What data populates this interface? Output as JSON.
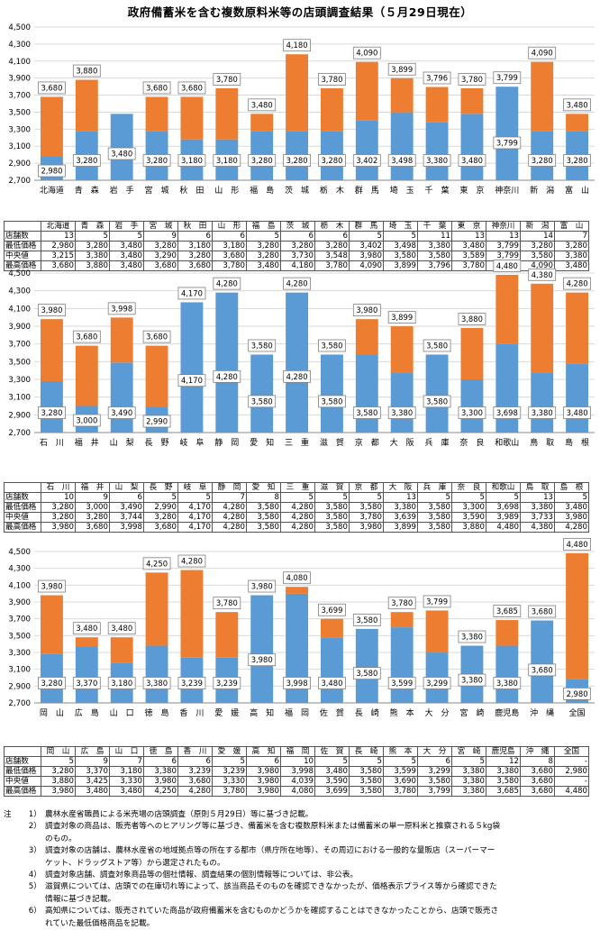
{
  "title": "政府備蓄米を含む複数原料米等の店頭調査結果（５月29日現在）",
  "colors": {
    "min_bar": "#5b9bd5",
    "range_bar": "#ed7d31",
    "grid": "#d9d9d9",
    "border": "#555555"
  },
  "row_labels": {
    "stores": "店舗数",
    "min": "最低価格",
    "median": "中央値",
    "max": "最高価格"
  },
  "chart_data": [
    {
      "type": "bar",
      "stacked": true,
      "ylim": [
        2700,
        4500
      ],
      "yticks": [
        "2,700",
        "2,900",
        "3,100",
        "3,300",
        "3,500",
        "3,700",
        "3,900",
        "4,100",
        "4,300",
        "4,500"
      ],
      "grid": true,
      "categories": [
        "北海道",
        "青森",
        "岩手",
        "宮城",
        "秋田",
        "山形",
        "福島",
        "茨城",
        "栃木",
        "群馬",
        "埼玉",
        "千葉",
        "東京",
        "神奈川",
        "新潟",
        "富山"
      ],
      "chart_labels": [
        "北海道",
        "青　森",
        "岩　手",
        "宮　城",
        "秋　田",
        "山　形",
        "福　島",
        "茨　城",
        "栃　木",
        "群　馬",
        "埼　玉",
        "千　葉",
        "東　京",
        "神奈川",
        "新　潟",
        "富　山"
      ],
      "table_labels": [
        "北海道",
        "青　森",
        "岩　手",
        "宮　城",
        "秋　田",
        "山　形",
        "福　島",
        "茨　城",
        "栃　木",
        "群　馬",
        "埼　玉",
        "千　葉",
        "東　京",
        "神奈川",
        "新　潟",
        "富　山"
      ],
      "min_labels": [
        "2,980",
        "3,280",
        "3,480",
        "3,280",
        "3,180",
        "3,180",
        "3,280",
        "3,280",
        "3,280",
        "3,402",
        "3,498",
        "3,380",
        "3,480",
        "3,799",
        "3,280",
        "3,280"
      ],
      "max_labels": [
        "3,680",
        "3,880",
        "",
        "3,680",
        "3,680",
        "3,780",
        "3,480",
        "4,180",
        "3,780",
        "4,090",
        "3,899",
        "3,796",
        "3,780",
        "3,799",
        "4,090",
        "3,480"
      ],
      "min": [
        2980,
        3280,
        3480,
        3280,
        3180,
        3180,
        3280,
        3280,
        3280,
        3402,
        3498,
        3380,
        3480,
        3799,
        3280,
        3280
      ],
      "max": [
        3680,
        3880,
        3480,
        3680,
        3680,
        3780,
        3480,
        4180,
        3780,
        4090,
        3899,
        3796,
        3780,
        3799,
        4090,
        3480
      ],
      "table": {
        "stores": [
          "13",
          "5",
          "5",
          "9",
          "6",
          "6",
          "5",
          "6",
          "6",
          "5",
          "5",
          "11",
          "13",
          "13",
          "14",
          "7"
        ],
        "min": [
          "2,980",
          "3,280",
          "3,480",
          "3,280",
          "3,180",
          "3,180",
          "3,280",
          "3,280",
          "3,280",
          "3,402",
          "3,498",
          "3,380",
          "3,480",
          "3,799",
          "3,280",
          "3,280"
        ],
        "median": [
          "3,215",
          "3,380",
          "3,480",
          "3,290",
          "3,280",
          "3,680",
          "3,280",
          "3,730",
          "3,548",
          "3,980",
          "3,580",
          "3,580",
          "3,589",
          "3,799",
          "3,580",
          "3,380"
        ],
        "max": [
          "3,680",
          "3,880",
          "3,480",
          "3,680",
          "3,680",
          "3,780",
          "3,480",
          "4,180",
          "3,780",
          "4,090",
          "3,899",
          "3,796",
          "3,780",
          "3,799",
          "4,090",
          "3,480"
        ]
      }
    },
    {
      "type": "bar",
      "stacked": true,
      "ylim": [
        2700,
        4500
      ],
      "yticks": [
        "2,700",
        "2,900",
        "3,100",
        "3,300",
        "3,500",
        "3,700",
        "3,900",
        "4,100",
        "4,300",
        "4,500"
      ],
      "grid": true,
      "categories": [
        "石川",
        "福井",
        "山梨",
        "長野",
        "岐阜",
        "静岡",
        "愛知",
        "三重",
        "滋賀",
        "京都",
        "大阪",
        "兵庫",
        "奈良",
        "和歌山",
        "鳥取",
        "島根"
      ],
      "chart_labels": [
        "石　川",
        "福　井",
        "山　梨",
        "長　野",
        "岐　阜",
        "静　岡",
        "愛　知",
        "三　重",
        "滋　賀",
        "京　都",
        "大　阪",
        "兵　庫",
        "奈　良",
        "和歌山",
        "鳥　取",
        "島　根"
      ],
      "table_labels": [
        "石　川",
        "福　井",
        "山　梨",
        "長　野",
        "岐　阜",
        "静　岡",
        "愛　知",
        "三　重",
        "滋　賀",
        "京　都",
        "大　阪",
        "兵　庫",
        "奈　良",
        "和歌山",
        "鳥　取",
        "島　根"
      ],
      "min_labels": [
        "3,280",
        "3,000",
        "3,490",
        "2,990",
        "4,170",
        "4,280",
        "3,580",
        "4,280",
        "3,580",
        "3,580",
        "3,380",
        "3,580",
        "3,300",
        "3,698",
        "3,380",
        "3,480"
      ],
      "max_labels": [
        "3,980",
        "3,680",
        "3,998",
        "3,680",
        "4,170",
        "4,280",
        "3,580",
        "4,280",
        "3,580",
        "3,980",
        "3,899",
        "3,580",
        "3,880",
        "4,480",
        "4,380",
        "4,280"
      ],
      "min": [
        3280,
        3000,
        3490,
        2990,
        4170,
        4280,
        3580,
        4280,
        3580,
        3580,
        3380,
        3580,
        3300,
        3698,
        3380,
        3480
      ],
      "max": [
        3980,
        3680,
        3998,
        3680,
        4170,
        4280,
        3580,
        4280,
        3580,
        3980,
        3899,
        3580,
        3880,
        4480,
        4380,
        4280
      ],
      "table": {
        "stores": [
          "10",
          "9",
          "6",
          "5",
          "5",
          "7",
          "8",
          "5",
          "5",
          "5",
          "13",
          "5",
          "5",
          "5",
          "13",
          "5"
        ],
        "min": [
          "3,280",
          "3,000",
          "3,490",
          "2,990",
          "4,170",
          "4,280",
          "3,580",
          "4,280",
          "3,580",
          "3,580",
          "3,380",
          "3,580",
          "3,300",
          "3,698",
          "3,380",
          "3,480"
        ],
        "median": [
          "3,280",
          "3,280",
          "3,744",
          "3,280",
          "4,170",
          "4,280",
          "3,580",
          "4,280",
          "3,580",
          "3,780",
          "3,639",
          "3,580",
          "3,590",
          "3,989",
          "3,733",
          "3,980"
        ],
        "max": [
          "3,980",
          "3,680",
          "3,998",
          "3,680",
          "4,170",
          "4,280",
          "3,580",
          "4,280",
          "3,580",
          "3,980",
          "3,899",
          "3,580",
          "3,880",
          "4,480",
          "4,380",
          "4,280"
        ]
      }
    },
    {
      "type": "bar",
      "stacked": true,
      "ylim": [
        2700,
        4500
      ],
      "yticks": [
        "2,700",
        "2,900",
        "3,100",
        "3,300",
        "3,500",
        "3,700",
        "3,900",
        "4,100",
        "4,300",
        "4,500"
      ],
      "grid": true,
      "categories": [
        "岡山",
        "広島",
        "山口",
        "徳島",
        "香川",
        "愛媛",
        "高知",
        "福岡",
        "佐賀",
        "長崎",
        "熊本",
        "大分",
        "宮崎",
        "鹿児島",
        "沖縄",
        "全国"
      ],
      "chart_labels": [
        "岡　山",
        "広　島",
        "山　口",
        "徳　島",
        "香　川",
        "愛　媛",
        "高　知",
        "福　岡",
        "佐　賀",
        "長　崎",
        "熊　本",
        "大　分",
        "宮　崎",
        "鹿児島",
        "沖　縄",
        "全国"
      ],
      "table_labels": [
        "岡　山",
        "広　島",
        "山　口",
        "徳　島",
        "香　川",
        "愛　媛",
        "高　知",
        "福　岡",
        "佐　賀",
        "長　崎",
        "熊　本",
        "大　分",
        "宮　崎",
        "鹿児島",
        "沖　縄",
        "全国"
      ],
      "min_labels": [
        "3,280",
        "3,370",
        "3,180",
        "3,380",
        "3,239",
        "3,239",
        "3,980",
        "3,998",
        "3,480",
        "3,580",
        "3,599",
        "3,299",
        "3,380",
        "3,380",
        "3,680",
        "2,980"
      ],
      "max_labels": [
        "3,980",
        "3,480",
        "3,480",
        "4,250",
        "4,280",
        "3,780",
        "3,980",
        "4,080",
        "3,699",
        "3,580",
        "3,780",
        "3,799",
        "3,380",
        "3,685",
        "3,680",
        "4,480"
      ],
      "min": [
        3280,
        3370,
        3180,
        3380,
        3239,
        3239,
        3980,
        3998,
        3480,
        3580,
        3599,
        3299,
        3380,
        3380,
        3680,
        2980
      ],
      "max": [
        3980,
        3480,
        3480,
        4250,
        4280,
        3780,
        3980,
        4080,
        3699,
        3580,
        3780,
        3799,
        3380,
        3685,
        3680,
        4480
      ],
      "table": {
        "stores": [
          "5",
          "9",
          "7",
          "6",
          "6",
          "5",
          "6",
          "10",
          "5",
          "5",
          "5",
          "6",
          "5",
          "12",
          "8",
          "-"
        ],
        "min": [
          "3,280",
          "3,370",
          "3,180",
          "3,380",
          "3,239",
          "3,239",
          "3,980",
          "3,998",
          "3,480",
          "3,580",
          "3,599",
          "3,299",
          "3,380",
          "3,380",
          "3,680",
          "2,980"
        ],
        "median": [
          "3,880",
          "3,425",
          "3,330",
          "3,980",
          "3,680",
          "3,330",
          "3,980",
          "4,039",
          "3,590",
          "3,580",
          "3,690",
          "3,580",
          "3,380",
          "3,580",
          "3,680",
          "-"
        ],
        "max": [
          "3,980",
          "3,480",
          "3,480",
          "4,250",
          "4,280",
          "3,780",
          "3,980",
          "4,080",
          "3,699",
          "3,580",
          "3,780",
          "3,799",
          "3,380",
          "3,685",
          "3,680",
          "4,480"
        ]
      }
    }
  ],
  "notes": {
    "label": "注",
    "items": [
      {
        "num": "1）",
        "text": "農林水産省職員による米売場の店頭調査（原則５月29日）等に基づき記載。"
      },
      {
        "num": "2）",
        "text": "調査対象の商品は、販売者等へのヒアリング等に基づき、備蓄米を含む複数原料米または備蓄米の単一原料米と推察される５kg袋"
      },
      {
        "num": "",
        "text": "のもの。"
      },
      {
        "num": "3）",
        "text": "調査対象の店舗は、農林水産省の地域拠点等の所在する都市（県庁所在地等）、その周辺における一般的な量販店（スーパーマー"
      },
      {
        "num": "",
        "text": "ケット、ドラッグストア等）から選定されたもの。"
      },
      {
        "num": "4）",
        "text": "調査対象店舗、調査対象商品等の個社情報、調査結果の個別情報等については、非公表。"
      },
      {
        "num": "5）",
        "text": "滋賀県については、店頭での在庫切れ等によって、該当商品そのものを確認できなかったが、価格表示プライス等から確認できた"
      },
      {
        "num": "",
        "text": "情報に基づき記載。"
      },
      {
        "num": "6）",
        "text": "高知県については、販売されていた商品が政府備蓄米を含むものかどうかを確認することはできなかったことから、店頭で販売さ"
      },
      {
        "num": "",
        "text": "れていた最低価格商品を記載。"
      }
    ]
  }
}
